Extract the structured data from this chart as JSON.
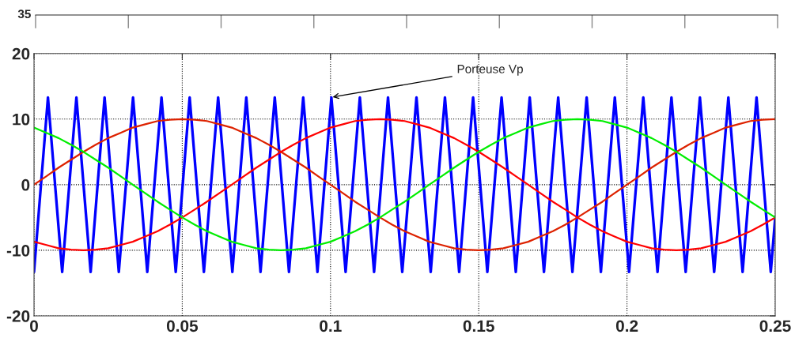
{
  "chart_data": [
    {
      "type": "other",
      "annotations": [
        "35"
      ]
    },
    {
      "type": "line",
      "xlim": [
        0,
        0.25
      ],
      "ylim": [
        -20,
        20
      ],
      "xticks": [
        0,
        0.05,
        0.1,
        0.15,
        0.2,
        0.25
      ],
      "yticks": [
        -20,
        -10,
        0,
        10,
        20
      ],
      "grid": true,
      "legend": false,
      "x": [
        0,
        0.0042,
        0.0083,
        0.0125,
        0.0167,
        0.0208,
        0.025,
        0.0292,
        0.0333,
        0.0375,
        0.0417,
        0.0458,
        0.05,
        0.0542,
        0.0583,
        0.0625,
        0.0667,
        0.0708,
        0.075,
        0.0792,
        0.0833,
        0.0875,
        0.0917,
        0.0958,
        0.1,
        0.1042,
        0.1083,
        0.1125,
        0.1167,
        0.1208,
        0.125,
        0.1292,
        0.1333,
        0.1375,
        0.1417,
        0.1458,
        0.15,
        0.1542,
        0.1583,
        0.1625,
        0.1667,
        0.1708,
        0.175,
        0.1792,
        0.1833,
        0.1875,
        0.1917,
        0.1958,
        0.2,
        0.2042,
        0.2083,
        0.2125,
        0.2167,
        0.2208,
        0.225,
        0.2292,
        0.2333,
        0.2375,
        0.2417,
        0.2458,
        0.25
      ],
      "series": [
        {
          "color": "#0000ff",
          "x": [
            0,
            0.0047,
            0.0095,
            0.0143,
            0.0191,
            0.0238,
            0.0286,
            0.0334,
            0.0382,
            0.043,
            0.0478,
            0.0525,
            0.0573,
            0.0621,
            0.0669,
            0.0716,
            0.0764,
            0.0812,
            0.086,
            0.0908,
            0.0956,
            0.1003,
            0.1051,
            0.1099,
            0.1147,
            0.1194,
            0.1242,
            0.129,
            0.1338,
            0.1386,
            0.1434,
            0.1481,
            0.1529,
            0.1577,
            0.1625,
            0.1672,
            0.172,
            0.1768,
            0.1816,
            0.1864,
            0.1912,
            0.1959,
            0.2007,
            0.2055,
            0.2103,
            0.215,
            0.2198,
            0.2246,
            0.2294,
            0.2342,
            0.239,
            0.2437,
            0.2485,
            0.25
          ],
          "values": [
            -13.3,
            13.3,
            -13.3,
            13.3,
            -13.3,
            13.3,
            -13.3,
            13.3,
            -13.3,
            13.3,
            -13.3,
            13.3,
            -13.3,
            13.3,
            -13.3,
            13.3,
            -13.3,
            13.3,
            -13.3,
            13.3,
            -13.3,
            13.3,
            -13.3,
            13.3,
            -13.3,
            13.3,
            -13.3,
            13.3,
            -13.3,
            13.3,
            -13.3,
            13.3,
            -13.3,
            13.3,
            -13.3,
            13.3,
            -13.3,
            13.3,
            -13.3,
            13.3,
            -13.3,
            13.3,
            -13.3,
            13.3,
            -13.3,
            13.3,
            -13.3,
            13.3,
            -13.3,
            13.3,
            -13.3,
            13.3,
            -13.3,
            -5
          ]
        },
        {
          "color": "#dd2200",
          "values": [
            0,
            1.3,
            2.6,
            3.8,
            5,
            6.1,
            7.1,
            7.9,
            8.7,
            9.2,
            9.7,
            9.9,
            10,
            9.9,
            9.7,
            9.2,
            8.7,
            7.9,
            7.1,
            6.1,
            5,
            3.8,
            2.6,
            1.3,
            0,
            -1.3,
            -2.6,
            -3.8,
            -5,
            -6.1,
            -7.1,
            -7.9,
            -8.7,
            -9.2,
            -9.7,
            -9.9,
            -10,
            -9.9,
            -9.7,
            -9.2,
            -8.7,
            -7.9,
            -7.1,
            -6.1,
            -5,
            -3.8,
            -2.6,
            -1.3,
            0,
            1.3,
            2.6,
            3.8,
            5,
            6.1,
            7.1,
            7.9,
            8.7,
            9.2,
            9.7,
            9.9,
            10
          ]
        },
        {
          "color": "#ff0000",
          "values": [
            -8.7,
            -9.2,
            -9.7,
            -9.9,
            -10,
            -9.9,
            -9.7,
            -9.2,
            -8.7,
            -7.9,
            -7.1,
            -6.1,
            -5,
            -3.8,
            -2.6,
            -1.3,
            0,
            1.3,
            2.6,
            3.8,
            5,
            6.1,
            7.1,
            7.9,
            8.7,
            9.2,
            9.7,
            9.9,
            10,
            9.9,
            9.7,
            9.2,
            8.7,
            7.9,
            7.1,
            6.1,
            5,
            3.8,
            2.6,
            1.3,
            0,
            -1.3,
            -2.6,
            -3.8,
            -5,
            -6.1,
            -7.1,
            -7.9,
            -8.7,
            -9.2,
            -9.7,
            -9.9,
            -10,
            -9.9,
            -9.7,
            -9.2,
            -8.7,
            -7.9,
            -7.1,
            -6.1,
            -5
          ]
        },
        {
          "color": "#00ee00",
          "values": [
            8.7,
            7.9,
            7.1,
            6.1,
            5,
            3.8,
            2.6,
            1.3,
            0,
            -1.3,
            -2.6,
            -3.8,
            -5,
            -6.1,
            -7.1,
            -7.9,
            -8.7,
            -9.2,
            -9.7,
            -9.9,
            -10,
            -9.9,
            -9.7,
            -9.2,
            -8.7,
            -7.9,
            -7.1,
            -6.1,
            -5,
            -3.8,
            -2.6,
            -1.3,
            0,
            1.3,
            2.6,
            3.8,
            5,
            6.1,
            7.1,
            7.9,
            8.7,
            9.2,
            9.7,
            9.9,
            10,
            9.9,
            9.7,
            9.2,
            8.7,
            7.9,
            7.1,
            6.1,
            5,
            3.8,
            2.6,
            1.3,
            0,
            -1.3,
            -2.6,
            -3.8,
            -5
          ]
        }
      ],
      "annotations": [
        {
          "text": "Porteuse Vp",
          "x": 0.1,
          "y": 13.3
        }
      ]
    }
  ]
}
